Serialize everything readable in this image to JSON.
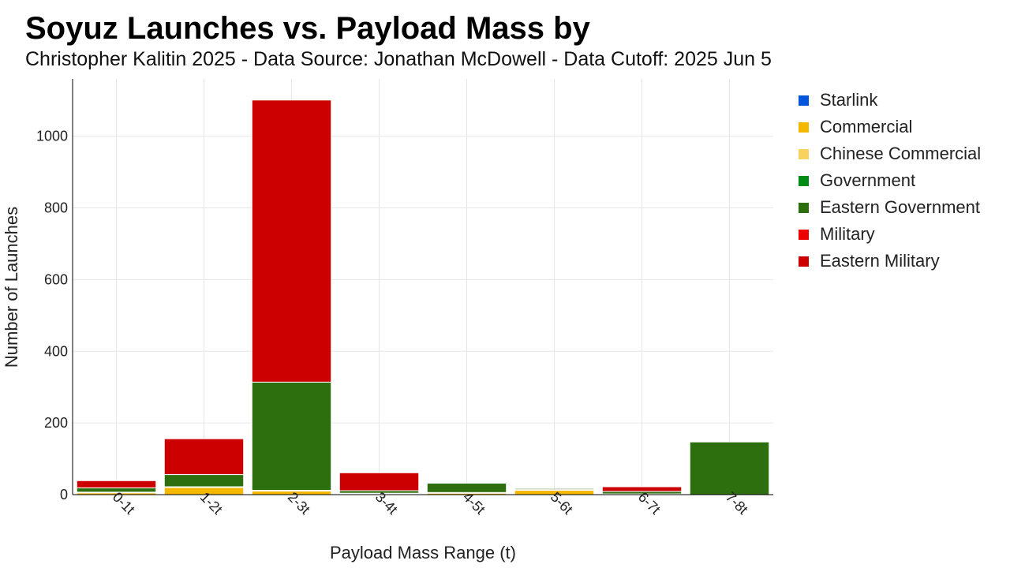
{
  "header": {
    "title": "Soyuz Launches vs. Payload Mass by",
    "subtitle": "Christopher Kalitin 2025 - Data Source: Jonathan McDowell - Data Cutoff: 2025 Jun 5"
  },
  "chart_data": {
    "type": "bar",
    "stacked": true,
    "xlabel": "Payload Mass Range (t)",
    "ylabel": "Number of Launches",
    "ylim": [
      0,
      1160
    ],
    "yticks": [
      0,
      200,
      400,
      600,
      800,
      1000
    ],
    "grid": true,
    "legend_position": "right",
    "categories": [
      "0-1t",
      "1-2t",
      "2-3t",
      "3-4t",
      "4-5t",
      "5-6t",
      "6-7t",
      "7-8t"
    ],
    "series": [
      {
        "name": "Starlink",
        "color": "#0055dd",
        "values": [
          0,
          0,
          0,
          0,
          0,
          0,
          0,
          0
        ]
      },
      {
        "name": "Commercial",
        "color": "#f5b800",
        "values": [
          5,
          20,
          10,
          2,
          4,
          12,
          2,
          0
        ]
      },
      {
        "name": "Chinese Commercial",
        "color": "#f7d25c",
        "values": [
          0,
          0,
          0,
          0,
          0,
          0,
          0,
          0
        ]
      },
      {
        "name": "Government",
        "color": "#008c14",
        "values": [
          2,
          2,
          2,
          2,
          2,
          2,
          0,
          0
        ]
      },
      {
        "name": "Eastern Government",
        "color": "#2d6e0e",
        "values": [
          12,
          34,
          302,
          7,
          26,
          3,
          7,
          147
        ]
      },
      {
        "name": "Military",
        "color": "#ee0000",
        "values": [
          0,
          0,
          0,
          0,
          0,
          0,
          0,
          0
        ]
      },
      {
        "name": "Eastern Military",
        "color": "#cc0000",
        "values": [
          20,
          100,
          787,
          50,
          0,
          0,
          13,
          0
        ]
      }
    ]
  }
}
